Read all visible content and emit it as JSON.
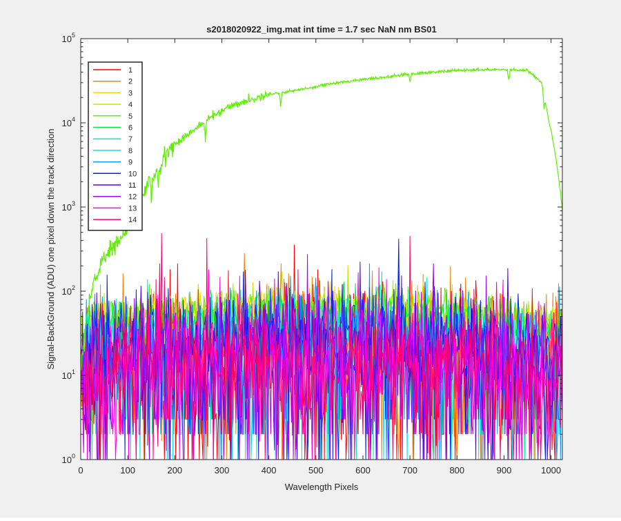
{
  "colors": {
    "figure_bg": "#f0f0f0",
    "axes_bg": "#ffffff",
    "axis": "#262626"
  },
  "chart_data": {
    "type": "line",
    "title": "s2018020922_img.mat int time = 1.7 sec  NaN nm BS01",
    "xlabel": "Wavelength Pixels",
    "ylabel": "Signal-BackGround (ADU) one pixel down the track direction",
    "xlim": [
      0,
      1024
    ],
    "ylim": [
      1,
      100000
    ],
    "y_scale": "log",
    "grid": false,
    "legend_position": "top-left",
    "x_ticks": [
      0,
      100,
      200,
      300,
      400,
      500,
      600,
      700,
      800,
      900,
      1000
    ],
    "x_tick_labels": [
      "0",
      "100",
      "200",
      "300",
      "400",
      "500",
      "600",
      "700",
      "800",
      "900",
      "1000"
    ],
    "y_ticks": [
      1,
      10,
      100,
      1000,
      10000,
      100000
    ],
    "y_tick_labels": [
      {
        "base": "10",
        "exp": "0"
      },
      {
        "base": "10",
        "exp": "1"
      },
      {
        "base": "10",
        "exp": "2"
      },
      {
        "base": "10",
        "exp": "3"
      },
      {
        "base": "10",
        "exp": "4"
      },
      {
        "base": "10",
        "exp": "5"
      }
    ],
    "series": [
      {
        "name": "1",
        "color": "#ff0000",
        "level": 15,
        "noise": 1.0,
        "spike": "low"
      },
      {
        "name": "2",
        "color": "#ff7f00",
        "level": 22,
        "noise": 0.9,
        "spike": "low"
      },
      {
        "name": "3",
        "color": "#ffcc00",
        "level": 50,
        "noise": 0.35,
        "spike": "none"
      },
      {
        "name": "4",
        "color": "#b5f000",
        "level": 55,
        "noise": 0.3,
        "spike": "none"
      },
      {
        "name": "5",
        "color": "#5ef000",
        "level": 55,
        "noise": 0.25,
        "spike": "none"
      },
      {
        "name": "6",
        "color": "#00e640",
        "level": 40,
        "noise": 0.35,
        "spike": "none"
      },
      {
        "name": "7",
        "color": "#00f5a0",
        "level": 32,
        "noise": 0.4,
        "spike": "low"
      },
      {
        "name": "8",
        "color": "#00e5f0",
        "level": 35,
        "noise": 0.4,
        "spike": "low"
      },
      {
        "name": "9",
        "color": "#0099ff",
        "level": 25,
        "noise": 0.6,
        "spike": "low"
      },
      {
        "name": "10",
        "color": "#0022ee",
        "level": 28,
        "noise": 0.6,
        "spike": "low"
      },
      {
        "name": "11",
        "color": "#5500ee",
        "level": 20,
        "noise": 0.8,
        "spike": "low"
      },
      {
        "name": "12",
        "color": "#a000f0",
        "level": 15,
        "noise": 0.9,
        "spike": "low"
      },
      {
        "name": "13",
        "color": "#ff00e6",
        "level": 14,
        "noise": 0.9,
        "spike": "low"
      },
      {
        "name": "14",
        "color": "#ff0070",
        "level": 16,
        "noise": 0.9,
        "spike": "low"
      }
    ],
    "main_trace": {
      "series_name": "5",
      "color": "#5ef000",
      "x": [
        0,
        5,
        10,
        20,
        30,
        40,
        50,
        60,
        70,
        80,
        90,
        100,
        110,
        120,
        130,
        140,
        150,
        160,
        170,
        180,
        190,
        200,
        220,
        250,
        280,
        300,
        320,
        350,
        380,
        400,
        420,
        450,
        480,
        500,
        530,
        560,
        600,
        650,
        700,
        750,
        800,
        850,
        900,
        950,
        980,
        990,
        1000,
        1010,
        1020,
        1024
      ],
      "y": [
        10,
        20,
        40,
        80,
        150,
        180,
        250,
        300,
        330,
        400,
        450,
        550,
        600,
        900,
        1200,
        1800,
        2200,
        2500,
        3000,
        4300,
        5000,
        5500,
        6800,
        9000,
        12000,
        14000,
        16000,
        18000,
        20000,
        22000,
        22500,
        24000,
        25500,
        27000,
        29000,
        30500,
        33000,
        35000,
        38000,
        40000,
        42000,
        42500,
        43000,
        42000,
        30000,
        15000,
        8000,
        4000,
        1500,
        900
      ]
    },
    "dips": [
      {
        "x": 150,
        "depth": 0.55
      },
      {
        "x": 165,
        "depth": 0.55
      },
      {
        "x": 265,
        "depth": 0.6
      },
      {
        "x": 425,
        "depth": 0.7
      },
      {
        "x": 700,
        "depth": 0.8
      },
      {
        "x": 910,
        "depth": 0.75
      },
      {
        "x": 985,
        "depth": 0.7
      }
    ]
  }
}
